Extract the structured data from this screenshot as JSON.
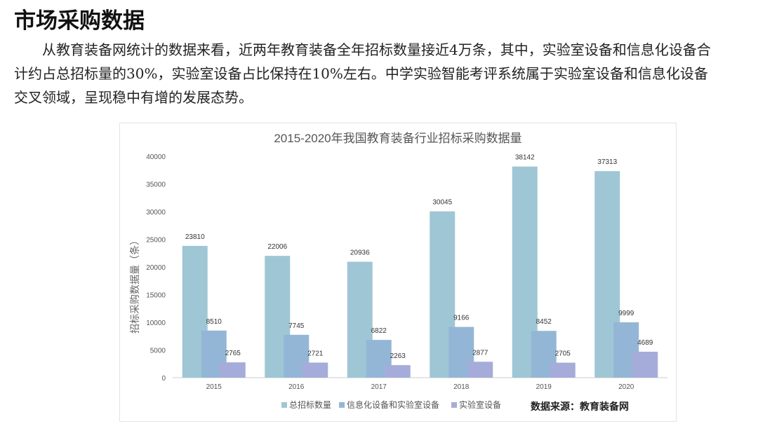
{
  "heading": "市场采购数据",
  "paragraph": "从教育装备网统计的数据来看，近两年教育装备全年招标数量接近4万条，其中，实验室设备和信息化设备合计约占总招标量的30%，实验室设备占比保持在10%左右。中学实验智能考评系统属于实验室设备和信息化设备交叉领域，呈现稳中有增的发展态势。",
  "chart_data": {
    "type": "bar",
    "title": "2015-2020年我国教育装备行业招标采购数据量",
    "xlabel": "",
    "ylabel": "招标采购数据量（条）",
    "ylim": [
      0,
      40000
    ],
    "yticks": [
      0,
      5000,
      10000,
      15000,
      20000,
      25000,
      30000,
      35000,
      40000
    ],
    "categories": [
      "2015",
      "2016",
      "2017",
      "2018",
      "2019",
      "2020"
    ],
    "series": [
      {
        "name": "总招标数量",
        "color": "#9fc6d4",
        "values": [
          23810,
          22006,
          20936,
          30045,
          38142,
          37313
        ]
      },
      {
        "name": "信息化设备和实验室设备",
        "color": "#94b6d6",
        "values": [
          8510,
          7745,
          6822,
          9166,
          8452,
          9999
        ]
      },
      {
        "name": "实验室设备",
        "color": "#a6acd9",
        "values": [
          2765,
          2721,
          2263,
          2877,
          2705,
          4689
        ]
      }
    ],
    "grid": false,
    "legend": "bottom",
    "source": "数据来源：教育装备网"
  }
}
